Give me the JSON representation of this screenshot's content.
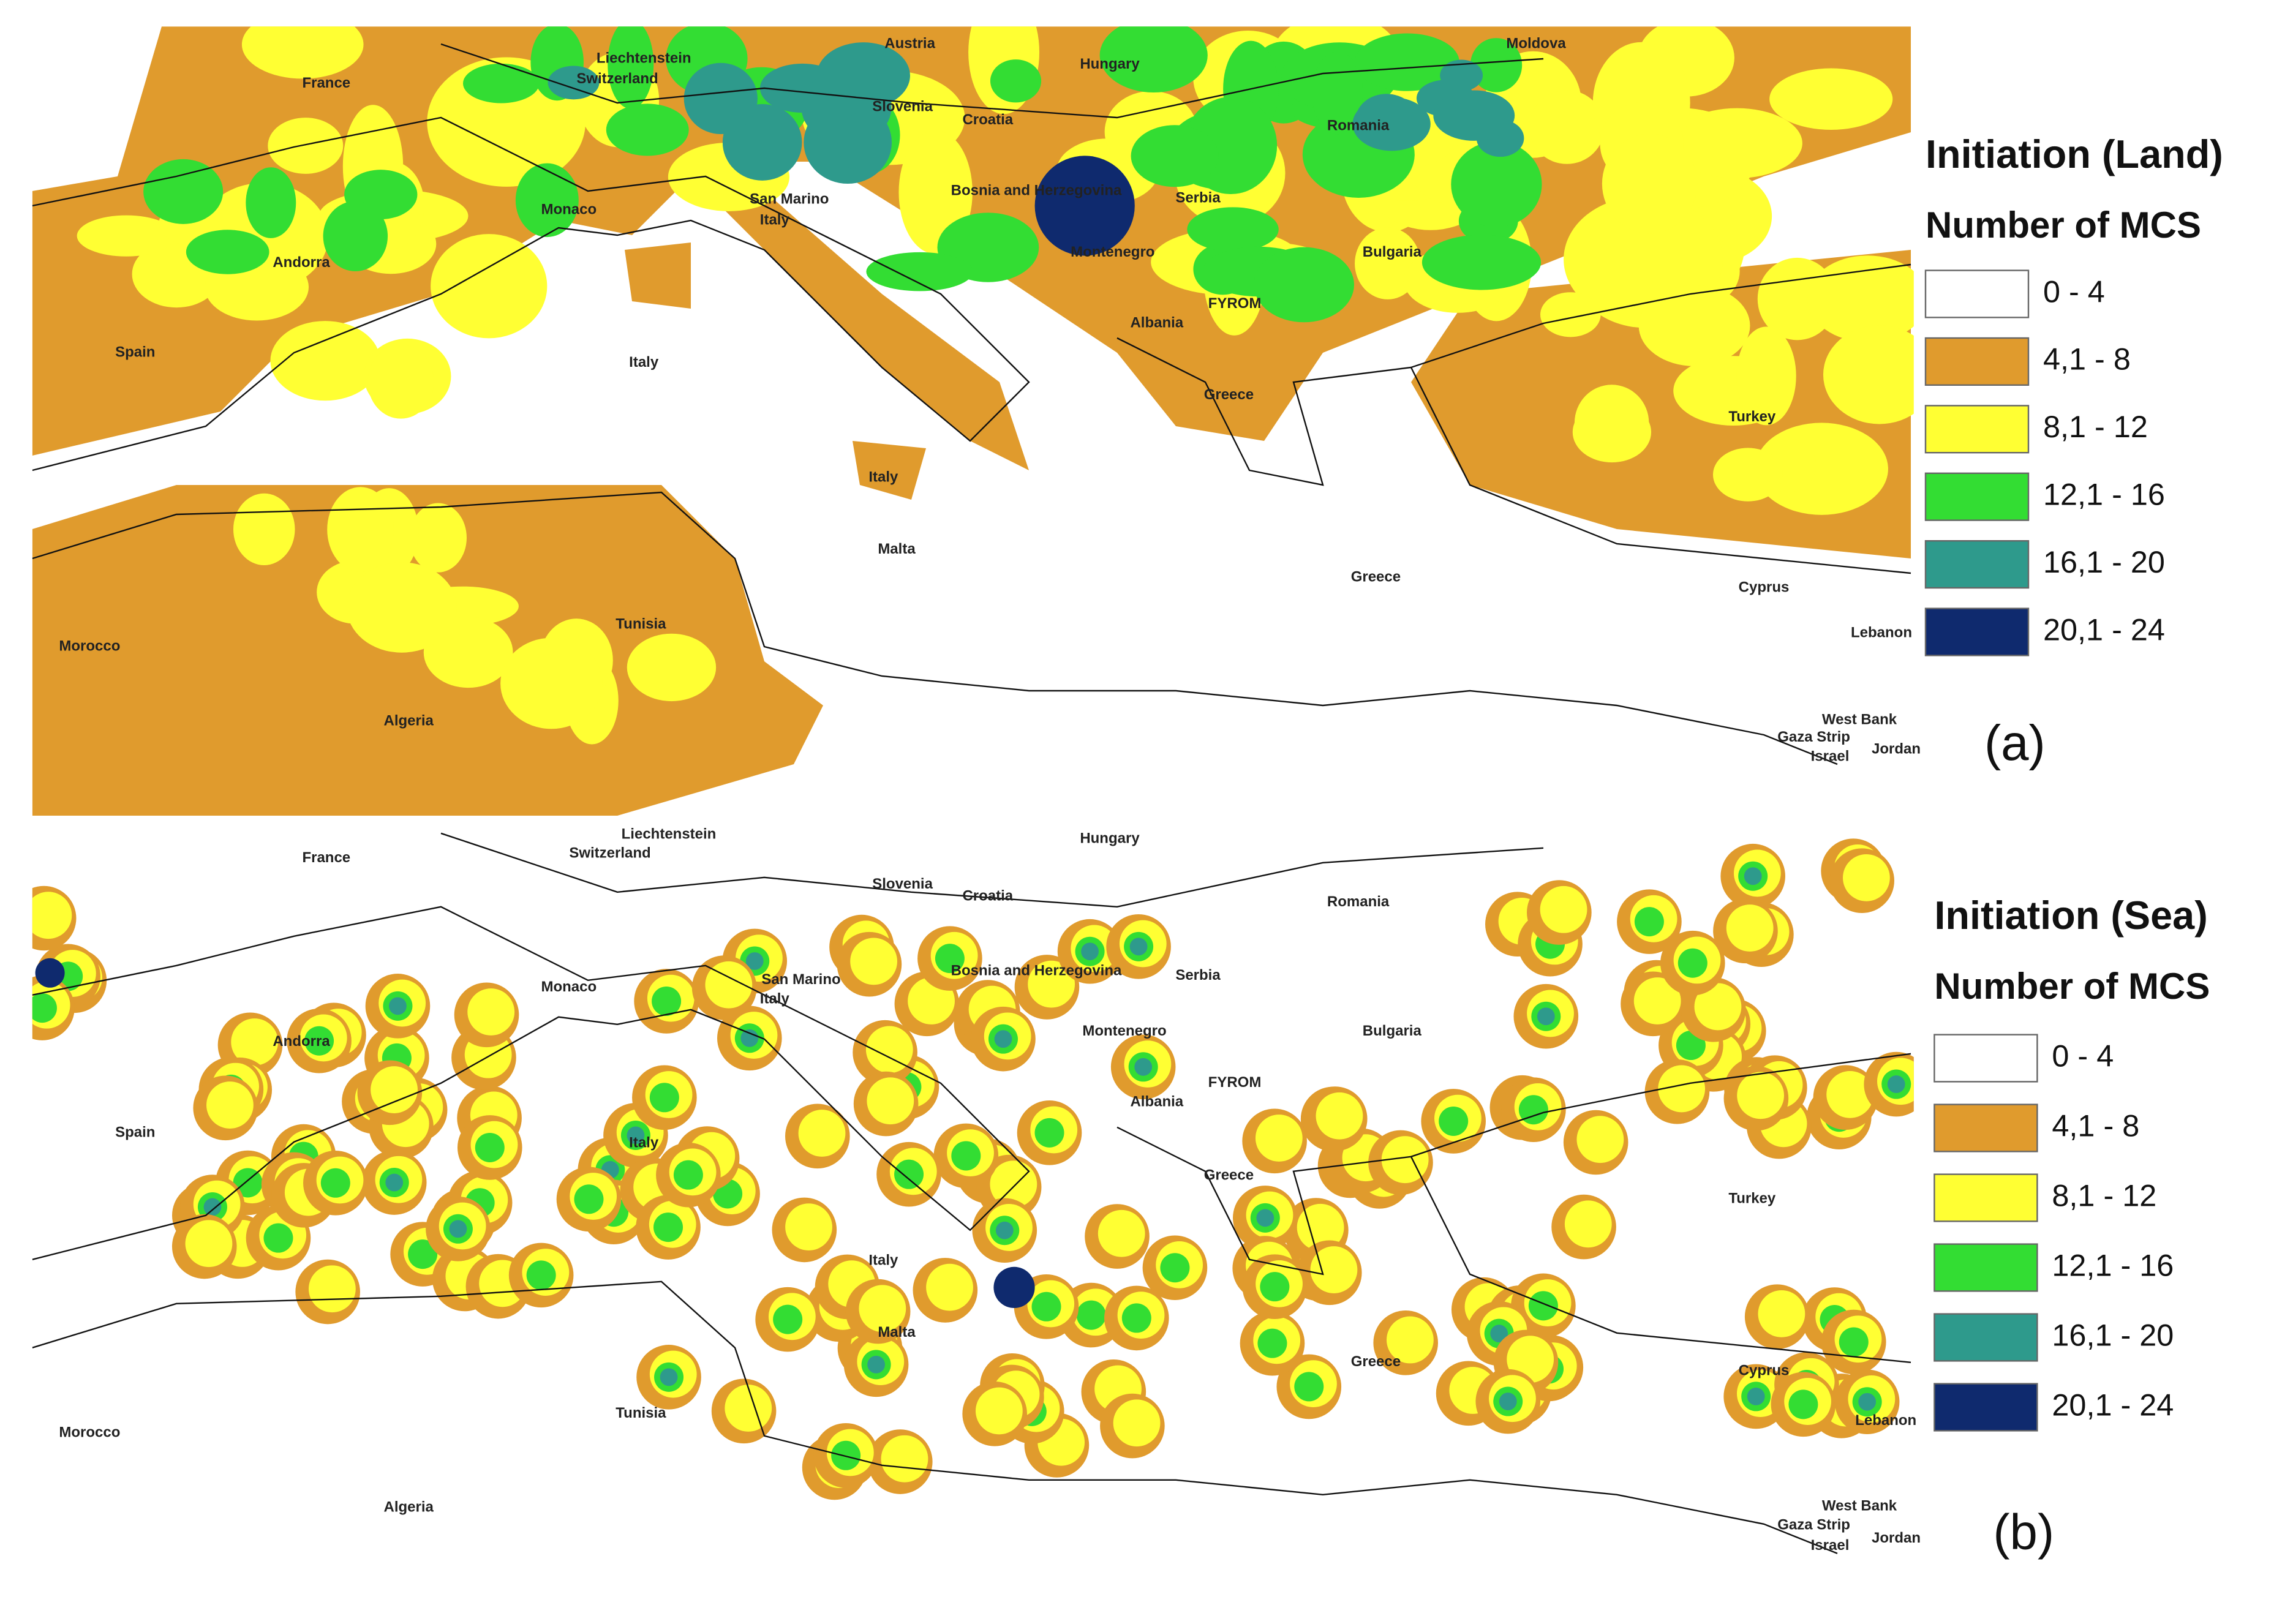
{
  "panels": [
    {
      "tag": "(a)",
      "legend": {
        "title": "Initiation (Land)",
        "subtitle": "Number of MCS",
        "classes": [
          {
            "label": "0 - 4",
            "color": "#ffffff"
          },
          {
            "label": "4,1 - 8",
            "color": "#e09b2d"
          },
          {
            "label": "8,1 - 12",
            "color": "#ffff33"
          },
          {
            "label": "12,1 - 16",
            "color": "#33dd33"
          },
          {
            "label": "16,1 - 20",
            "color": "#2e9a8c"
          },
          {
            "label": "20,1 - 24",
            "color": "#0f2a6e"
          }
        ]
      },
      "places": [
        "France",
        "Liechtenstein",
        "Austria",
        "Switzerland",
        "Hungary",
        "Moldova",
        "Slovenia",
        "Croatia",
        "Romania",
        "San Marino",
        "Italy",
        "Bosnia and Herzegovina",
        "Serbia",
        "Monaco",
        "Andorra",
        "Montenegro",
        "Bulgaria",
        "FYROM",
        "Albania",
        "Spain",
        "Italy",
        "Greece",
        "Turkey",
        "Italy",
        "Malta",
        "Greece",
        "Cyprus",
        "Morocco",
        "Tunisia",
        "Lebanon",
        "Algeria",
        "West Bank",
        "Gaza Strip",
        "Israel",
        "Jordan"
      ]
    },
    {
      "tag": "(b)",
      "legend": {
        "title": "Initiation (Sea)",
        "subtitle": "Number of MCS",
        "classes": [
          {
            "label": "0 - 4",
            "color": "#ffffff"
          },
          {
            "label": "4,1 - 8",
            "color": "#e09b2d"
          },
          {
            "label": "8,1 - 12",
            "color": "#ffff33"
          },
          {
            "label": "12,1 - 16",
            "color": "#33dd33"
          },
          {
            "label": "16,1 - 20",
            "color": "#2e9a8c"
          },
          {
            "label": "20,1 - 24",
            "color": "#0f2a6e"
          }
        ]
      },
      "places": [
        "France",
        "Liechtenstein",
        "Switzerland",
        "Hungary",
        "Slovenia",
        "Croatia",
        "Romania",
        "San Marino",
        "Italy",
        "Bosnia and Herzegovina",
        "Serbia",
        "Monaco",
        "Montenegro",
        "Andorra",
        "Bulgaria",
        "FYROM",
        "Albania",
        "Spain",
        "Italy",
        "Greece",
        "Turkey",
        "Italy",
        "Malta",
        "Greece",
        "Cyprus",
        "Tunisia",
        "Morocco",
        "Lebanon",
        "Algeria",
        "West Bank",
        "Gaza Strip",
        "Israel",
        "Jordan"
      ]
    }
  ]
}
